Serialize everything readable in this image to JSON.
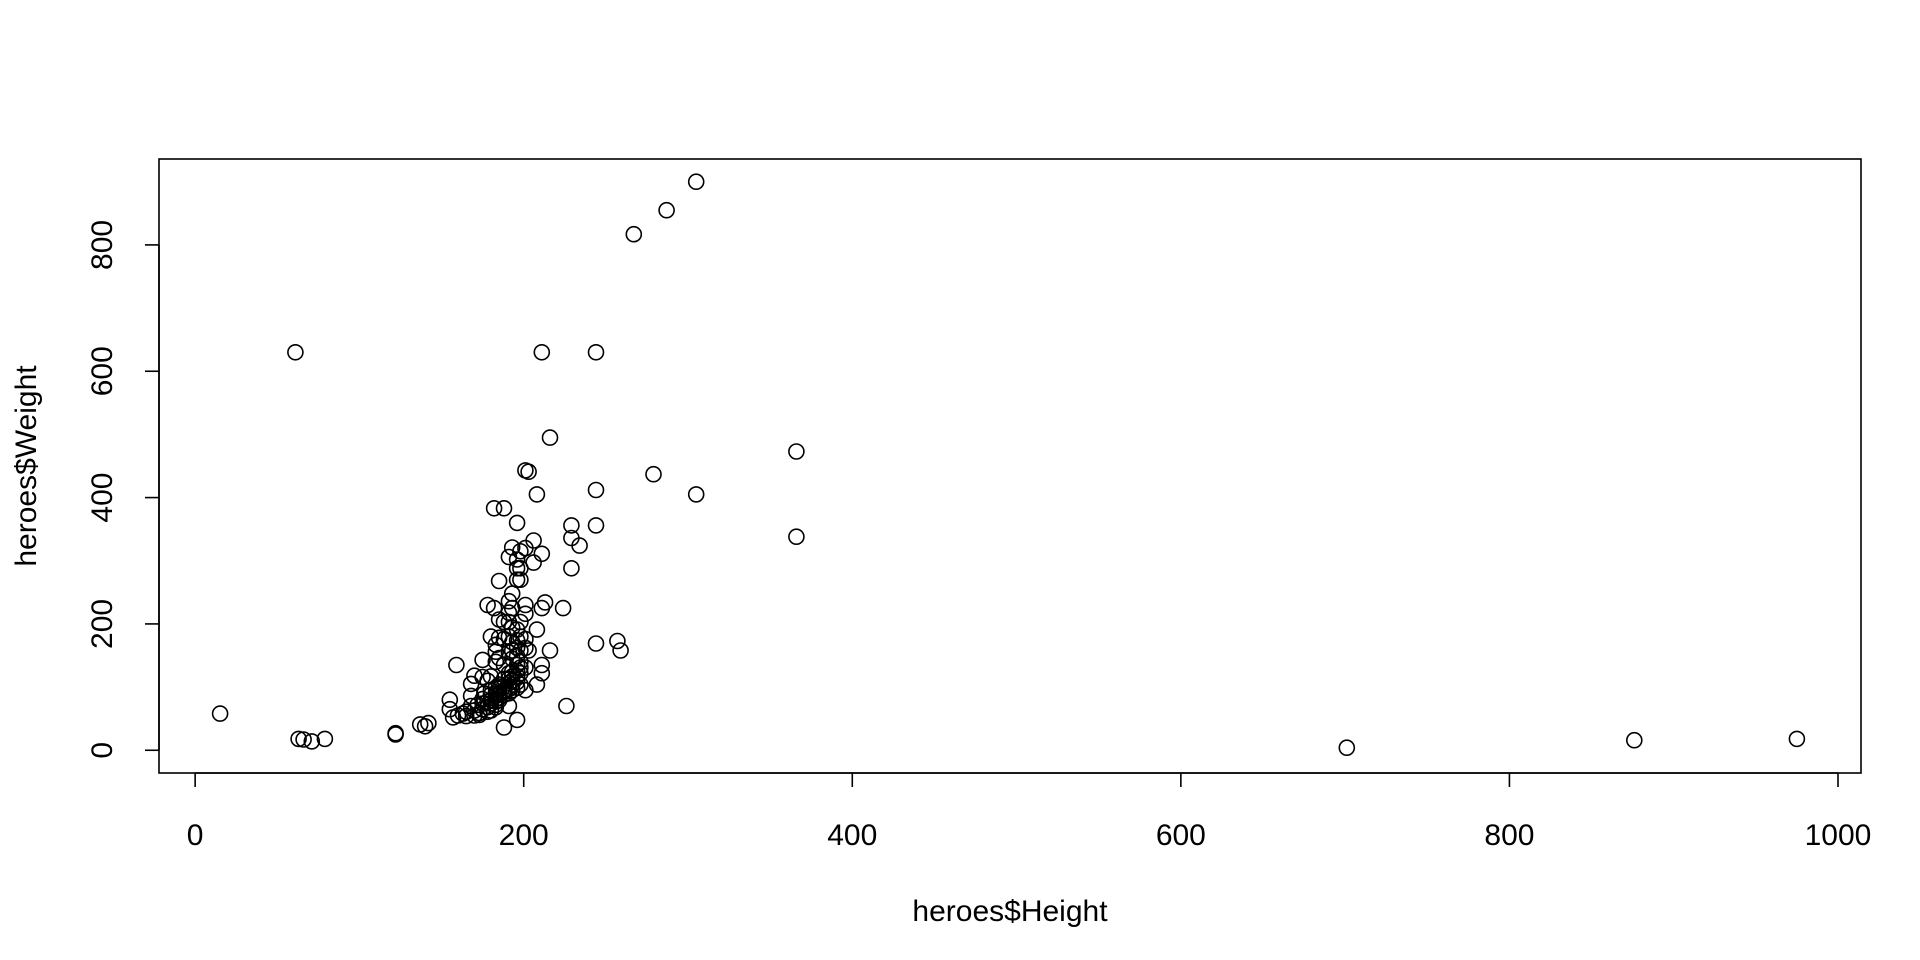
{
  "chart_data": {
    "type": "scatter",
    "title": "",
    "xlabel": "heroes$Height",
    "ylabel": "heroes$Weight",
    "xlim": [
      -22,
      1014
    ],
    "ylim": [
      -36,
      936
    ],
    "x_ticks": [
      0,
      200,
      400,
      600,
      800,
      1000
    ],
    "y_ticks": [
      0,
      200,
      400,
      600,
      800
    ],
    "x_tick_labels": [
      "0",
      "200",
      "400",
      "600",
      "800",
      "1000"
    ],
    "y_tick_labels": [
      "0",
      "200",
      "400",
      "600",
      "800"
    ],
    "grid": false,
    "legend": "none",
    "marker": "open-circle",
    "point_color": "#000000",
    "series": [
      {
        "points": [
          [
            15.2,
            58
          ],
          [
            61,
            630
          ],
          [
            63,
            18
          ],
          [
            66,
            17
          ],
          [
            71,
            14
          ],
          [
            79,
            18
          ],
          [
            122,
            27
          ],
          [
            122,
            25
          ],
          [
            137,
            41
          ],
          [
            140,
            38
          ],
          [
            142,
            43
          ],
          [
            155,
            80
          ],
          [
            155,
            65
          ],
          [
            157,
            52
          ],
          [
            159,
            135
          ],
          [
            160,
            55
          ],
          [
            163,
            58
          ],
          [
            165,
            61
          ],
          [
            165,
            54
          ],
          [
            168,
            105
          ],
          [
            168,
            86
          ],
          [
            168,
            70
          ],
          [
            170,
            118
          ],
          [
            170,
            63
          ],
          [
            170,
            55
          ],
          [
            172,
            72
          ],
          [
            173,
            56
          ],
          [
            173,
            59
          ],
          [
            175,
            143
          ],
          [
            175,
            116
          ],
          [
            175,
            81
          ],
          [
            175,
            74
          ],
          [
            175,
            65
          ],
          [
            176,
            90
          ],
          [
            178,
            230
          ],
          [
            178,
            110
          ],
          [
            178,
            77
          ],
          [
            178,
            68
          ],
          [
            178,
            61
          ],
          [
            180,
            180
          ],
          [
            180,
            117
          ],
          [
            180,
            95
          ],
          [
            180,
            88
          ],
          [
            180,
            79
          ],
          [
            180,
            74
          ],
          [
            180,
            63
          ],
          [
            182,
            383
          ],
          [
            182,
            225
          ],
          [
            183,
            167
          ],
          [
            183,
            156
          ],
          [
            183,
            140
          ],
          [
            183,
            99
          ],
          [
            183,
            90
          ],
          [
            183,
            86
          ],
          [
            183,
            81
          ],
          [
            183,
            77
          ],
          [
            183,
            72
          ],
          [
            183,
            68
          ],
          [
            185,
            268
          ],
          [
            185,
            207
          ],
          [
            185,
            178
          ],
          [
            185,
            146
          ],
          [
            185,
            104
          ],
          [
            185,
            101
          ],
          [
            185,
            90
          ],
          [
            185,
            88
          ],
          [
            185,
            83
          ],
          [
            185,
            79
          ],
          [
            188,
            383
          ],
          [
            188,
            203
          ],
          [
            188,
            176
          ],
          [
            188,
            135
          ],
          [
            188,
            113
          ],
          [
            188,
            101
          ],
          [
            188,
            95
          ],
          [
            188,
            92
          ],
          [
            188,
            88
          ],
          [
            188,
            36
          ],
          [
            191,
            306
          ],
          [
            191,
            236
          ],
          [
            191,
            218
          ],
          [
            191,
            203
          ],
          [
            191,
            180
          ],
          [
            191,
            155
          ],
          [
            191,
            122
          ],
          [
            191,
            113
          ],
          [
            191,
            106
          ],
          [
            191,
            101
          ],
          [
            191,
            97
          ],
          [
            191,
            90
          ],
          [
            191,
            70
          ],
          [
            193,
            321
          ],
          [
            193,
            248
          ],
          [
            193,
            225
          ],
          [
            193,
            194
          ],
          [
            193,
            171
          ],
          [
            193,
            158
          ],
          [
            193,
            145
          ],
          [
            193,
            124
          ],
          [
            193,
            117
          ],
          [
            193,
            110
          ],
          [
            193,
            104
          ],
          [
            193,
            95
          ],
          [
            196,
            360
          ],
          [
            196,
            302
          ],
          [
            196,
            288
          ],
          [
            196,
            270
          ],
          [
            196,
            191
          ],
          [
            196,
            174
          ],
          [
            196,
            162
          ],
          [
            196,
            149
          ],
          [
            196,
            135
          ],
          [
            196,
            126
          ],
          [
            196,
            117
          ],
          [
            196,
            108
          ],
          [
            196,
            99
          ],
          [
            196,
            48
          ],
          [
            198,
            315
          ],
          [
            198,
            288
          ],
          [
            198,
            270
          ],
          [
            198,
            203
          ],
          [
            198,
            180
          ],
          [
            198,
            158
          ],
          [
            198,
            140
          ],
          [
            198,
            131
          ],
          [
            198,
            122
          ],
          [
            198,
            104
          ],
          [
            201,
            443
          ],
          [
            201,
            320
          ],
          [
            201,
            230
          ],
          [
            201,
            216
          ],
          [
            201,
            176
          ],
          [
            201,
            162
          ],
          [
            201,
            131
          ],
          [
            201,
            95
          ],
          [
            203,
            441
          ],
          [
            203,
            158
          ],
          [
            206,
            332
          ],
          [
            206,
            297
          ],
          [
            208,
            405
          ],
          [
            208,
            191
          ],
          [
            208,
            104
          ],
          [
            211,
            630
          ],
          [
            211,
            311
          ],
          [
            211,
            225
          ],
          [
            211,
            135
          ],
          [
            211,
            122
          ],
          [
            213,
            234
          ],
          [
            216,
            495
          ],
          [
            216,
            158
          ],
          [
            224,
            225
          ],
          [
            226,
            70
          ],
          [
            229,
            356
          ],
          [
            229,
            336
          ],
          [
            229,
            288
          ],
          [
            234,
            324
          ],
          [
            244,
            630
          ],
          [
            244,
            412
          ],
          [
            244,
            356
          ],
          [
            244,
            169
          ],
          [
            257,
            173
          ],
          [
            259,
            158
          ],
          [
            267,
            817
          ],
          [
            279,
            437
          ],
          [
            287,
            855
          ],
          [
            305,
            900
          ],
          [
            305,
            405
          ],
          [
            366,
            473
          ],
          [
            366,
            338
          ],
          [
            701,
            4
          ],
          [
            876,
            16
          ],
          [
            975,
            18
          ]
        ]
      }
    ]
  }
}
